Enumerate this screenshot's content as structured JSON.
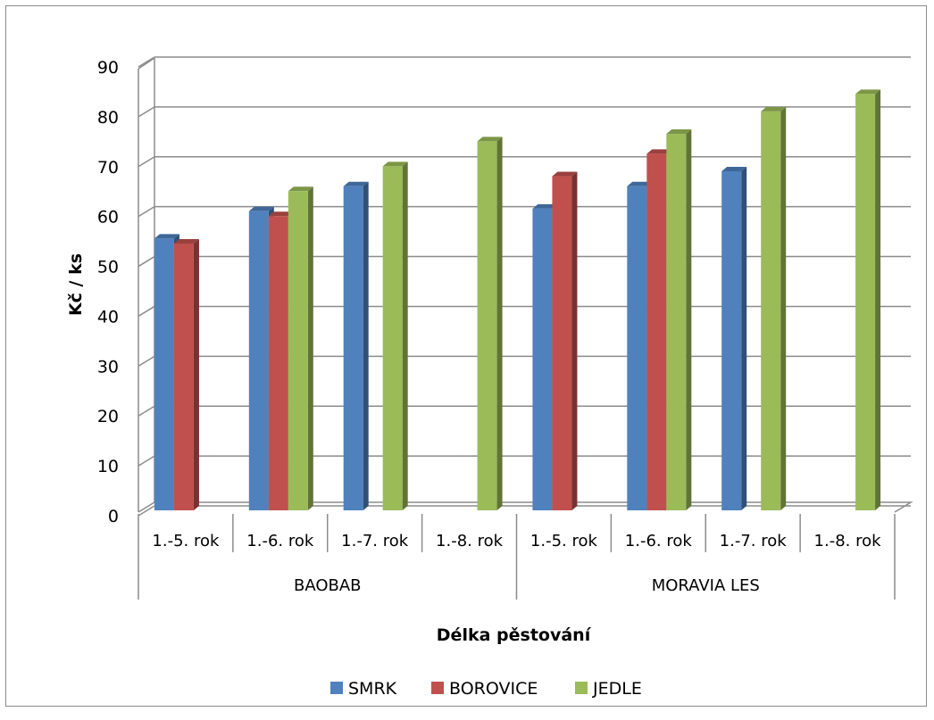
{
  "chart_data": {
    "type": "bar",
    "title": "",
    "xlabel": "Délka pěstování",
    "ylabel": "Kč / ks",
    "ylim": [
      0,
      90
    ],
    "yticks": [
      0,
      10,
      20,
      30,
      40,
      50,
      60,
      70,
      80,
      90
    ],
    "groups": [
      {
        "name": "BAOBAB",
        "categories": [
          "1.-5. rok",
          "1.-6. rok",
          "1.-7. rok",
          "1.-8. rok"
        ]
      },
      {
        "name": "MORAVIA LES",
        "categories": [
          "1.-5. rok",
          "1.-6. rok",
          "1.-7. rok",
          "1.-8. rok"
        ]
      }
    ],
    "series": [
      {
        "name": "SMRK",
        "color": "#4F81BD",
        "values": [
          54.5,
          60,
          65,
          null,
          60.5,
          65,
          68,
          null
        ]
      },
      {
        "name": "BOROVICE",
        "color": "#C0504D",
        "values": [
          53.5,
          59,
          null,
          null,
          67,
          71.5,
          null,
          null
        ]
      },
      {
        "name": "JEDLE",
        "color": "#9BBB59",
        "values": [
          null,
          64,
          69,
          74,
          null,
          75.5,
          80,
          83.5
        ]
      }
    ],
    "grid": true,
    "legend_position": "bottom"
  }
}
